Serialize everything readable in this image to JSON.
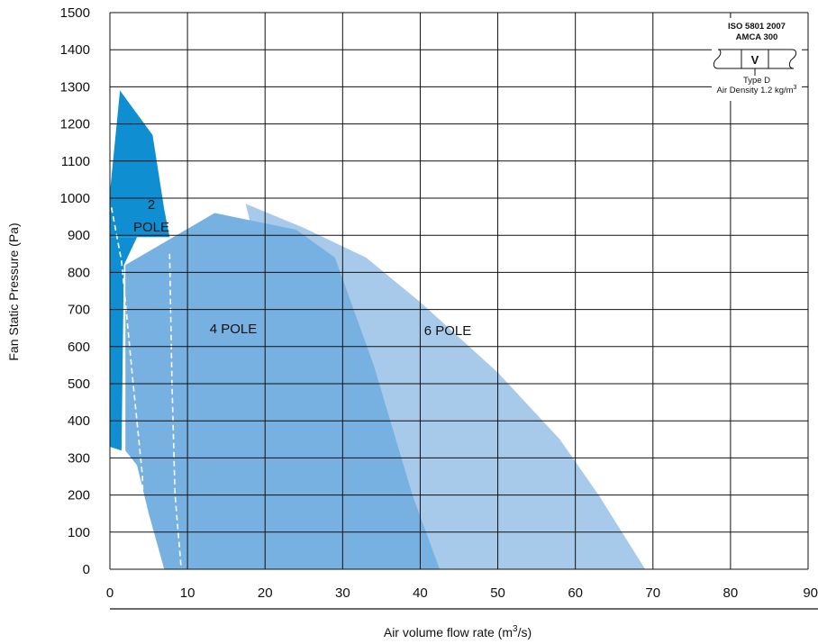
{
  "chart_data": {
    "type": "area",
    "xlabel_main": "Air volume flow rate (m",
    "xlabel_sup": "3",
    "xlabel_end": "/s)",
    "ylabel": "Fan Static Pressure (Pa)",
    "xlim": [
      0,
      90
    ],
    "ylim": [
      0,
      1500
    ],
    "grid": true,
    "x_ticks": [
      "0",
      "10",
      "20",
      "30",
      "40",
      "50",
      "60",
      "70",
      "80",
      "90"
    ],
    "y_ticks": [
      "0",
      "100",
      "200",
      "300",
      "400",
      "500",
      "600",
      "700",
      "800",
      "900",
      "1000",
      "1100",
      "1200",
      "1300",
      "1400",
      "1500"
    ],
    "regions": [
      {
        "label": "6 POLE",
        "color": "#a7c9ea",
        "points": [
          [
            17.5,
            985
          ],
          [
            25,
            920
          ],
          [
            33,
            840
          ],
          [
            40,
            720
          ],
          [
            50,
            530
          ],
          [
            58,
            350
          ],
          [
            63,
            200
          ],
          [
            69,
            0
          ],
          [
            29,
            0
          ],
          [
            17.5,
            985
          ]
        ]
      },
      {
        "label": "4 POLE",
        "color": "#76b1e2",
        "points": [
          [
            2,
            820
          ],
          [
            13.5,
            960
          ],
          [
            24,
            915
          ],
          [
            29,
            840
          ],
          [
            34,
            550
          ],
          [
            39,
            200
          ],
          [
            42.5,
            0
          ],
          [
            7,
            0
          ],
          [
            5,
            150
          ],
          [
            3.5,
            280
          ],
          [
            2,
            320
          ],
          [
            2,
            820
          ]
        ]
      },
      {
        "label_line1": "2",
        "label_line2": "POLE",
        "color": "#0f8fd2",
        "points": [
          [
            0,
            1015
          ],
          [
            1.3,
            1290
          ],
          [
            5.5,
            1170
          ],
          [
            7,
            970
          ],
          [
            7.7,
            895
          ],
          [
            0,
            895
          ]
        ]
      },
      {
        "label": "",
        "color": "#0f8fd2",
        "points": [
          [
            0,
            895
          ],
          [
            3.5,
            895
          ],
          [
            1.8,
            820
          ],
          [
            1.5,
            320
          ],
          [
            0,
            330
          ]
        ]
      }
    ],
    "dashed_lines": [
      {
        "points": [
          [
            0.2,
            975
          ],
          [
            1.5,
            830
          ],
          [
            3,
            500
          ],
          [
            4.2,
            250
          ],
          [
            4.3,
            60
          ],
          [
            4.5,
            0
          ]
        ]
      },
      {
        "points": [
          [
            7.7,
            850
          ],
          [
            8,
            500
          ],
          [
            8.4,
            200
          ],
          [
            9,
            50
          ],
          [
            9.2,
            0
          ]
        ]
      }
    ],
    "standard_box": {
      "line1": "ISO 5801 2007",
      "line2": "AMCA 300",
      "symbol": "V",
      "line3": "Type D",
      "line4_main": "Air Density 1.2 kg/m",
      "line4_sup": "3"
    }
  }
}
